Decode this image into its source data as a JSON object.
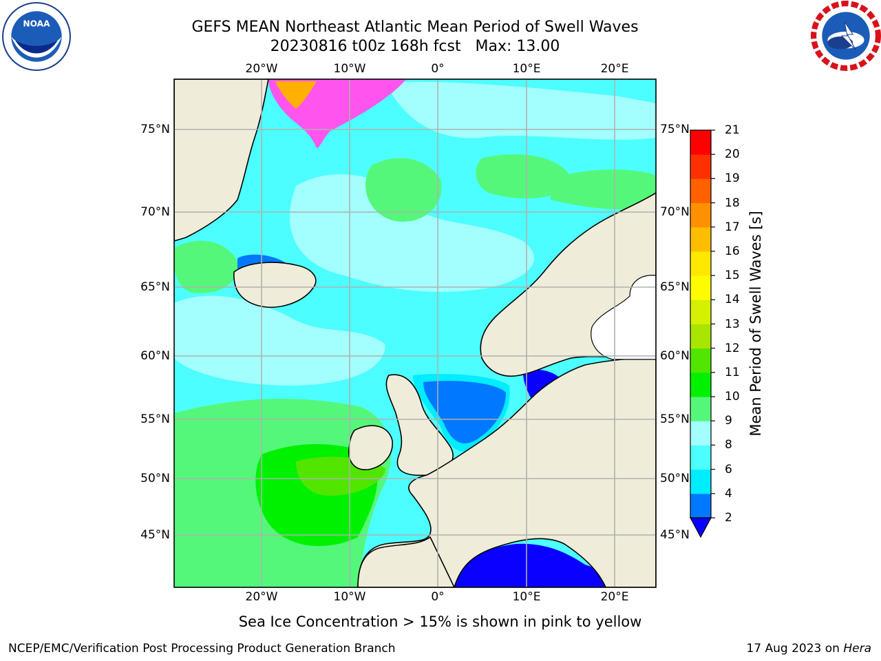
{
  "title": {
    "line1": "GEFS MEAN Northeast Atlantic Mean Period of Swell Waves",
    "line2": "20230816 t00z 168h fcst   Max: 13.00"
  },
  "logos": {
    "left": "NOAA",
    "right": "NATIONAL WEATHER SERVICE"
  },
  "map": {
    "projection": "lat-lon",
    "lon_range": [
      -30,
      25
    ],
    "lat_range": [
      41,
      78
    ],
    "lon_ticks": [
      "20°W",
      "10°W",
      "0°",
      "10°E",
      "20°E"
    ],
    "lat_ticks": [
      "75°N",
      "70°N",
      "65°N",
      "60°N",
      "55°N",
      "50°N",
      "45°N"
    ],
    "land_color": "#efedd9",
    "grid": true
  },
  "colorbar": {
    "label": "Mean Period of Swell Waves [s]",
    "ticks": [
      "2",
      "4",
      "6",
      "8",
      "9",
      "10",
      "11",
      "12",
      "13",
      "14",
      "15",
      "16",
      "17",
      "18",
      "19",
      "20",
      "21"
    ],
    "colors": [
      "#0a00ff",
      "#0078ff",
      "#00ecff",
      "#4cfeff",
      "#a3fffd",
      "#55f77a",
      "#00f100",
      "#52e500",
      "#a8e500",
      "#d5f000",
      "#fffc00",
      "#ffe800",
      "#ffbd00",
      "#ff9100",
      "#ff6000",
      "#ff3000",
      "#ff0000"
    ],
    "under_color": "#0a00ff",
    "extend": "min"
  },
  "note": "Sea Ice Concentration > 15% is shown in pink to yellow",
  "footer": {
    "left": "NCEP/EMC/Verification Post Processing Product Generation Branch",
    "right_date": "17 Aug 2023 on ",
    "right_host": "Hera"
  }
}
